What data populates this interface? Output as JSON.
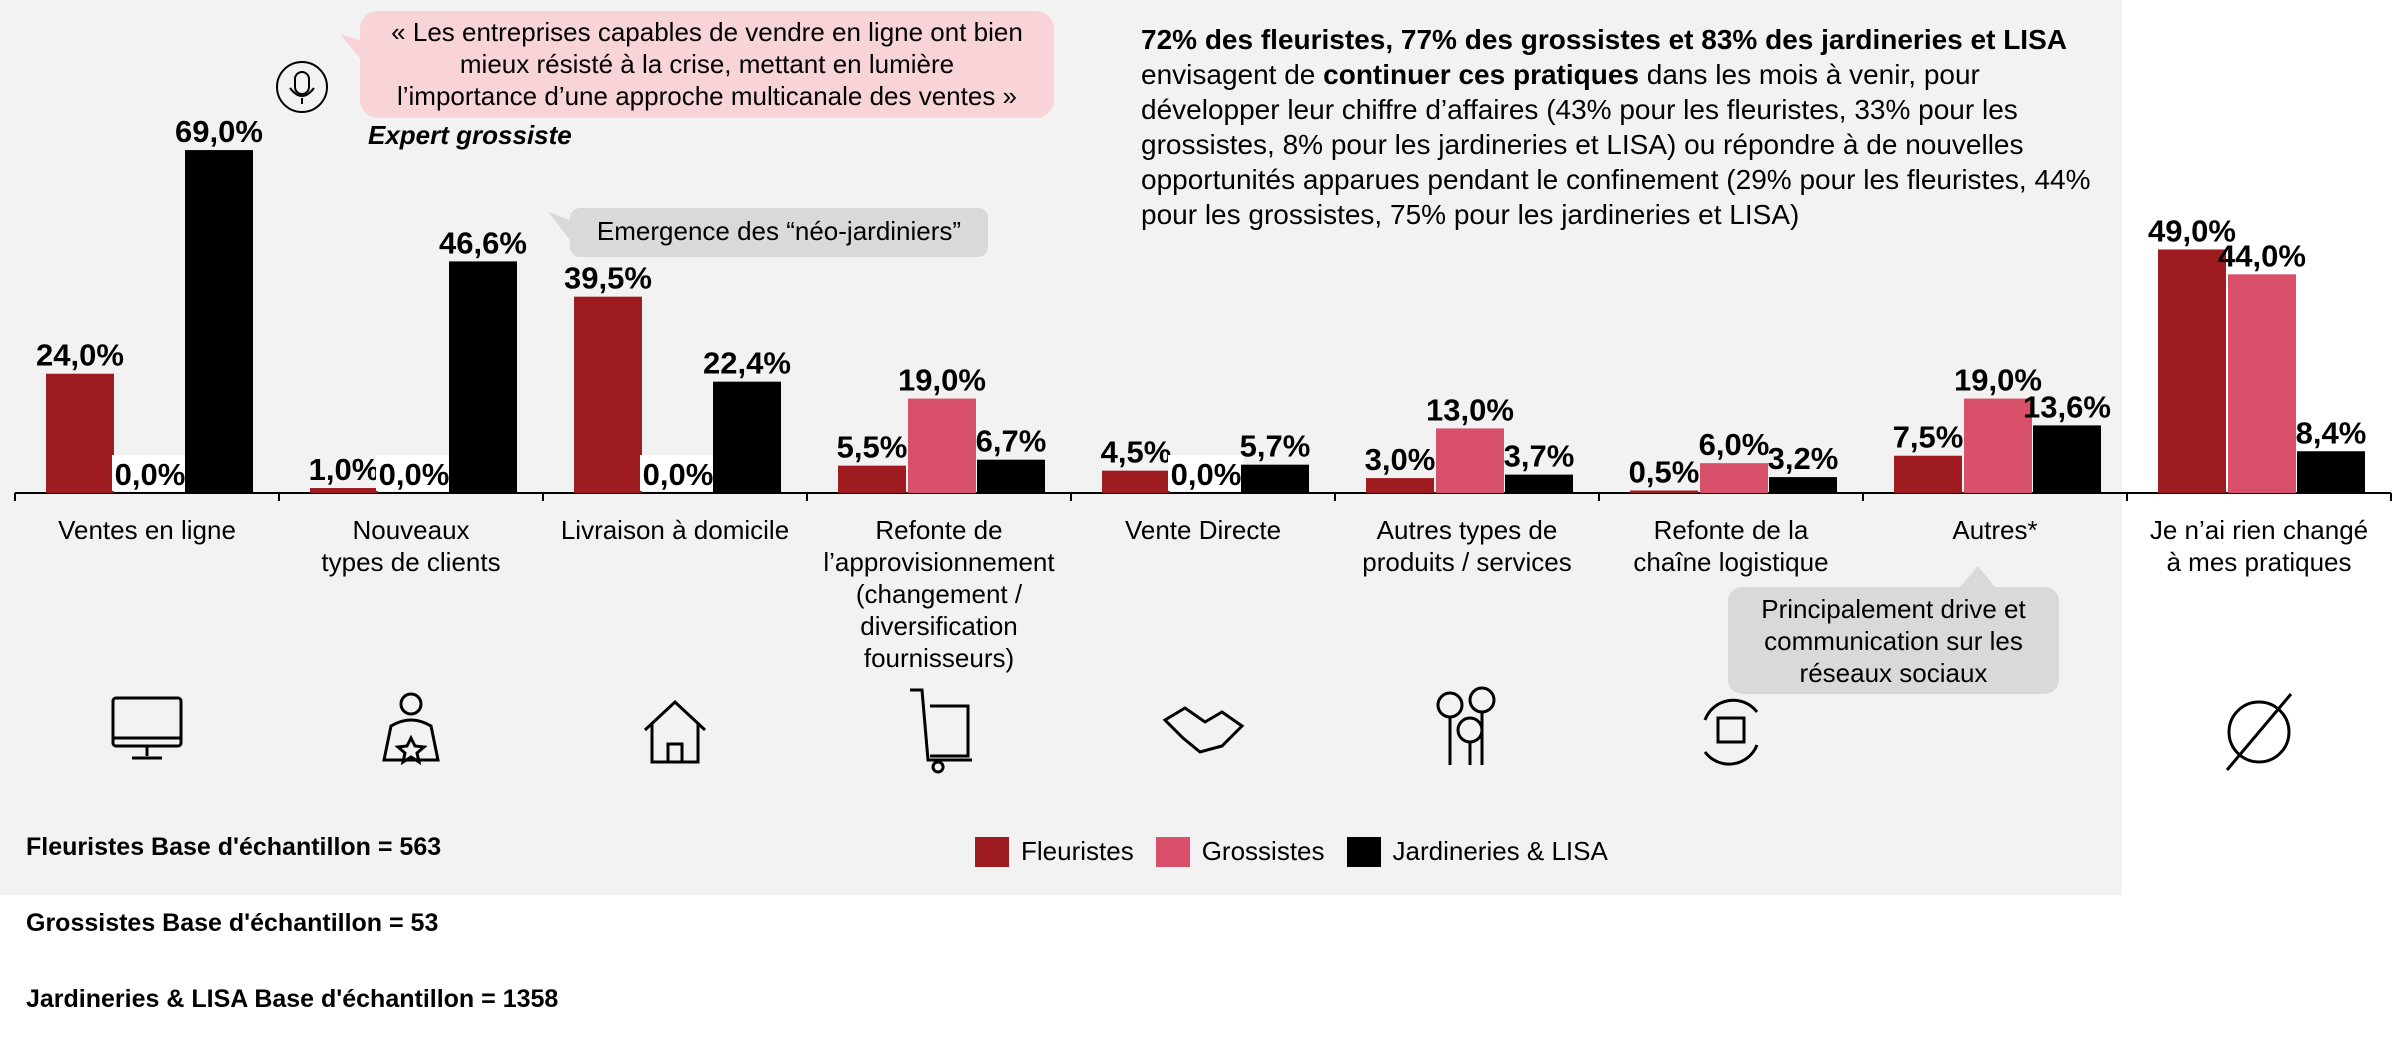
{
  "quote": "« Les entreprises capables de vendre en ligne ont bien\nmieux résisté à la crise, mettant en lumière\nl’importance d’une approche multicanale des ventes »",
  "quote_author": "Expert grossiste",
  "callouts": [
    "Emergence des “néo-jardiniers”",
    "Principalement drive et\ncommunication sur les\nréseaux sociaux"
  ],
  "summary": [
    {
      "text": "72% des fleuristes, 77% des grossistes et 83% des jardineries et LISA",
      "bold": true
    },
    {
      "text": " envisagent de ",
      "bold": false
    },
    {
      "text": "continuer ces pratiques",
      "bold": true
    },
    {
      "text": " dans les mois à venir, pour développer leur chiffre d’affaires (43% pour les fleuristes, 33% pour les grossistes, 8% pour les jardineries et LISA) ou répondre à de nouvelles opportunités apparues pendant le confinement (29% pour les fleuristes, 44% pour les grossistes, 75% pour les jardineries et LISA)",
      "bold": false
    }
  ],
  "sample_bases": [
    "Fleuristes Base d'échantillon = 563",
    "Grossistes Base d'échantillon = 53",
    "Jardineries & LISA Base d'échantillon = 1358"
  ],
  "chart_data": {
    "type": "bar",
    "categories": [
      "Ventes en ligne",
      "Nouveaux\ntypes de clients",
      "Livraison à domicile",
      "Refonte de\nl’approvisionnement\n(changement /\ndiversification\nfournisseurs)",
      "Vente Directe",
      "Autres types de\nproduits / services",
      "Refonte de la\nchaîne logistique",
      "Autres*",
      "Je n’ai rien changé\nà mes pratiques"
    ],
    "series": [
      {
        "name": "Fleuristes",
        "color": "#9e1b20",
        "values": [
          24.0,
          1.0,
          39.5,
          5.5,
          4.5,
          3.0,
          0.5,
          7.5,
          49.0
        ],
        "value_labels": [
          "24,0%",
          "1,0%",
          "39,5%",
          "5,5%",
          "4,5%",
          "3,0%",
          "0,5%",
          "7,5%",
          "49,0%"
        ]
      },
      {
        "name": "Grossistes",
        "color": "#d9506a",
        "values": [
          0.0,
          0.0,
          0.0,
          19.0,
          0.0,
          13.0,
          6.0,
          19.0,
          44.0
        ],
        "value_labels": [
          "0,0%",
          "0,0%",
          "0,0%",
          "19,0%",
          "0,0%",
          "13,0%",
          "6,0%",
          "19,0%",
          "44,0%"
        ]
      },
      {
        "name": "Jardineries & LISA",
        "color": "#000000",
        "values": [
          69.0,
          46.6,
          22.4,
          6.7,
          5.7,
          3.7,
          3.2,
          13.6,
          8.4
        ],
        "value_labels": [
          "69,0%",
          "46,6%",
          "22,4%",
          "6,7%",
          "5,7%",
          "3,7%",
          "3,2%",
          "13,6%",
          "8,4%"
        ]
      }
    ]
  }
}
